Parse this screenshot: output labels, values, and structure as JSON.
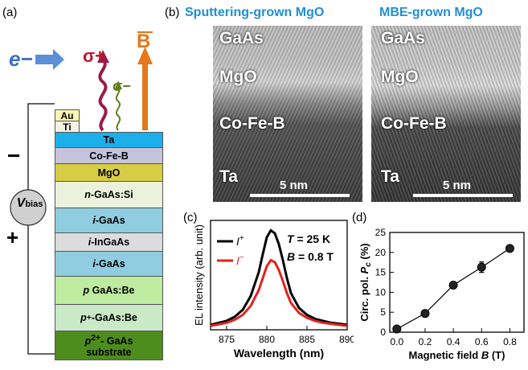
{
  "panel_labels": {
    "a": "(a)",
    "b": "(b)",
    "c": "(c)",
    "d": "(d)"
  },
  "device": {
    "electron": "e−",
    "sigma_plus": "σ+",
    "sigma_minus": "σ−",
    "field": "B",
    "minus": "−",
    "plus": "+",
    "vbias_main": "V",
    "vbias_sub": "bias",
    "contacts": [
      {
        "label": "Au",
        "color": "#fbf7b4"
      },
      {
        "label": "Ti",
        "color": "#f3f1e4"
      }
    ],
    "layers": [
      {
        "label": "Ta",
        "color": "#1cb0ea"
      },
      {
        "label": "Co-Fe-B",
        "color": "#c7c3dd"
      },
      {
        "label": "MgO",
        "color": "#d7cd45"
      },
      {
        "label": "n-GaAs:Si",
        "color": "#ecf1dd"
      },
      {
        "label": "i-GaAs",
        "color": "#90cde0"
      },
      {
        "label": "i-InGaAs",
        "color": "#dcdcdc"
      },
      {
        "label": "i-GaAs",
        "color": "#90cde0"
      },
      {
        "label": "p GaAs:Be",
        "color": "#bdeb9f"
      },
      {
        "label": "p+-GaAs:Be",
        "color": "#cae9c6"
      },
      {
        "label": "p2+- GaAs substrate",
        "color": "#4e8c1e"
      }
    ]
  },
  "tem": {
    "sputter_title": "Sputtering-grown MgO",
    "mbe_title": "MBE-grown MgO",
    "labels": [
      "GaAs",
      "MgO",
      "Co-Fe-B",
      "Ta"
    ],
    "scale_bar": "5 nm"
  },
  "chart_data": [
    {
      "type": "line",
      "panel": "(c)",
      "xlabel": "Wavelength (nm)",
      "ylabel": "EL intensity (arb. unit)",
      "xlim": [
        873,
        890
      ],
      "x_ticks": [
        875,
        880,
        885,
        890
      ],
      "annotations": [
        "T = 25 K",
        "B = 0.8 T"
      ],
      "legend": "top-left",
      "series": [
        {
          "name": "I+",
          "color": "#000000",
          "x": [
            873,
            875,
            876,
            877,
            878,
            879,
            879.5,
            880,
            880.5,
            881,
            881.5,
            882,
            882.5,
            883,
            884,
            885,
            886,
            887,
            888,
            890
          ],
          "y": [
            0.05,
            0.09,
            0.13,
            0.2,
            0.34,
            0.58,
            0.76,
            0.93,
            1.0,
            0.97,
            0.86,
            0.7,
            0.52,
            0.37,
            0.22,
            0.15,
            0.11,
            0.09,
            0.07,
            0.05
          ]
        },
        {
          "name": "I−",
          "color": "#e5201f",
          "x": [
            873,
            875,
            876,
            877,
            878,
            879,
            879.5,
            880,
            880.5,
            881,
            881.5,
            882,
            882.5,
            883,
            884,
            885,
            886,
            887,
            888,
            890
          ],
          "y": [
            0.04,
            0.07,
            0.1,
            0.15,
            0.24,
            0.4,
            0.52,
            0.64,
            0.7,
            0.68,
            0.6,
            0.49,
            0.37,
            0.27,
            0.17,
            0.12,
            0.09,
            0.07,
            0.06,
            0.04
          ]
        }
      ],
      "legend_labels": {
        "plus_base": "I",
        "plus_sup": "+",
        "minus_base": "I",
        "minus_sup": "−"
      }
    },
    {
      "type": "line",
      "panel": "(d)",
      "xlabel": "Magnetic field B (T)",
      "ylabel": "Circ. pol. Pc (%)",
      "xlim": [
        -0.05,
        0.9
      ],
      "ylim": [
        0,
        25
      ],
      "x_ticks": [
        0.0,
        0.2,
        0.4,
        0.6,
        0.8
      ],
      "y_ticks": [
        0,
        5,
        10,
        15,
        20,
        25
      ],
      "series": [
        {
          "name": "Pc",
          "x": [
            0.0,
            0.2,
            0.4,
            0.6,
            0.8
          ],
          "y": [
            0.8,
            4.7,
            11.8,
            16.3,
            21.0
          ],
          "err": [
            0.4,
            0.5,
            0.6,
            1.3,
            0.5
          ]
        }
      ]
    }
  ]
}
